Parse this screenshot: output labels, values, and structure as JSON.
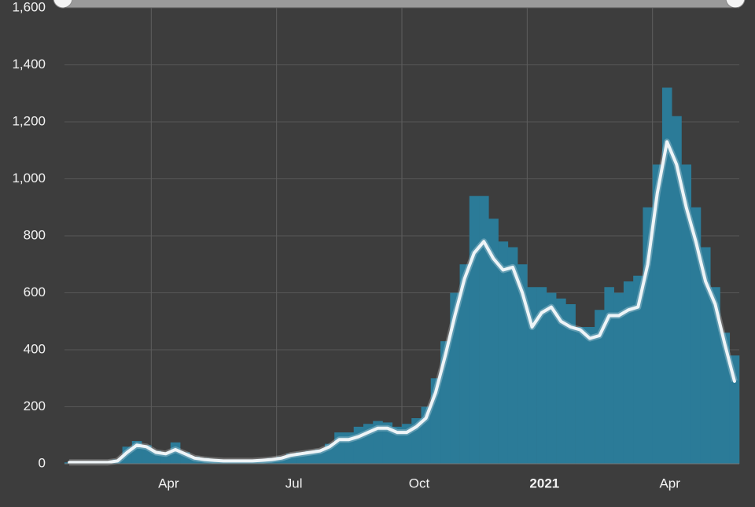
{
  "chart_data": {
    "type": "bar",
    "categories": [
      null,
      null,
      null,
      null,
      null,
      null,
      null,
      null,
      null,
      "Apr",
      null,
      null,
      null,
      null,
      null,
      null,
      null,
      null,
      null,
      null,
      null,
      null,
      "Jul",
      null,
      null,
      null,
      null,
      null,
      null,
      null,
      null,
      null,
      null,
      null,
      null,
      "Oct",
      null,
      null,
      null,
      null,
      null,
      null,
      null,
      null,
      null,
      null,
      null,
      null,
      "2021",
      null,
      null,
      null,
      null,
      null,
      null,
      null,
      null,
      null,
      null,
      null,
      null,
      "Apr",
      null,
      null,
      null,
      null,
      null,
      null,
      null,
      null
    ],
    "series": [
      {
        "type": "bar",
        "color": "#2b7b98",
        "values": [
          5,
          5,
          5,
          5,
          5,
          15,
          60,
          80,
          65,
          45,
          40,
          75,
          40,
          25,
          20,
          15,
          12,
          12,
          12,
          12,
          15,
          20,
          25,
          35,
          40,
          45,
          50,
          70,
          110,
          110,
          130,
          140,
          150,
          145,
          130,
          140,
          160,
          200,
          300,
          430,
          600,
          700,
          940,
          940,
          860,
          780,
          760,
          700,
          620,
          620,
          600,
          580,
          560,
          480,
          480,
          540,
          620,
          600,
          640,
          660,
          900,
          1050,
          1320,
          1220,
          1050,
          900,
          760,
          620,
          460,
          380
        ]
      },
      {
        "type": "line",
        "color": "#eef4f7",
        "values": [
          5,
          5,
          5,
          5,
          5,
          10,
          40,
          65,
          60,
          40,
          35,
          50,
          35,
          20,
          15,
          12,
          10,
          10,
          10,
          10,
          12,
          15,
          20,
          30,
          35,
          40,
          45,
          60,
          85,
          85,
          95,
          110,
          125,
          125,
          110,
          110,
          130,
          160,
          250,
          380,
          520,
          650,
          740,
          780,
          720,
          680,
          690,
          600,
          480,
          530,
          550,
          500,
          480,
          470,
          440,
          450,
          520,
          520,
          540,
          550,
          700,
          950,
          1130,
          1050,
          900,
          780,
          640,
          560,
          420,
          290
        ]
      }
    ],
    "ylim": [
      0,
      1600
    ],
    "yticks": [
      0,
      200,
      400,
      600,
      800,
      {
        "value": 1000,
        "label": "1,000"
      },
      {
        "value": 1200,
        "label": "1,200"
      },
      {
        "value": 1400,
        "label": "1,400"
      },
      {
        "value": 1600,
        "label": "1,600"
      }
    ],
    "grid": true
  }
}
